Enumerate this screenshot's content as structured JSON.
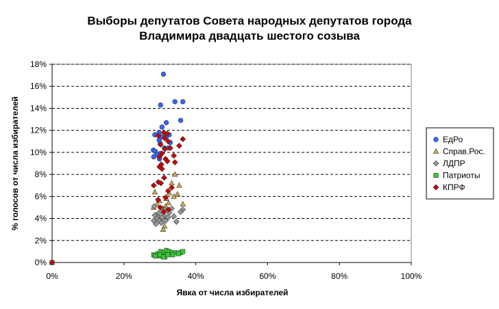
{
  "chart_data": {
    "type": "scatter",
    "title_lines": [
      "Выборы депутатов Совета народных депутатов города",
      "Владимира двадцать шестого созыва"
    ],
    "xlabel": "Явка от числа избирателей",
    "ylabel": "% голосов от числа избирателей",
    "xlim": [
      0,
      100
    ],
    "ylim": [
      0,
      18
    ],
    "x_ticks": [
      "0%",
      "20%",
      "40%",
      "60%",
      "80%",
      "100%"
    ],
    "y_ticks": [
      "0%",
      "2%",
      "4%",
      "6%",
      "8%",
      "10%",
      "12%",
      "14%",
      "16%",
      "18%"
    ],
    "grid": "horizontal dashed",
    "legend_position": "right",
    "series": [
      {
        "name": "ЕдРо",
        "marker": "circle",
        "color": "#3366ff",
        "points": [
          [
            0,
            0
          ],
          [
            31.0,
            17.1
          ],
          [
            30.2,
            14.3
          ],
          [
            34.2,
            14.6
          ],
          [
            36.4,
            14.6
          ],
          [
            35.8,
            12.9
          ],
          [
            31.8,
            12.7
          ],
          [
            30.6,
            12.3
          ],
          [
            29.8,
            11.8
          ],
          [
            31.4,
            11.7
          ],
          [
            28.6,
            11.6
          ],
          [
            30.3,
            11.4
          ],
          [
            32.6,
            11.6
          ],
          [
            29.8,
            11.1
          ],
          [
            31.7,
            11.3
          ],
          [
            30.1,
            10.8
          ],
          [
            32.9,
            10.9
          ],
          [
            31.3,
            10.4
          ],
          [
            28.2,
            10.2
          ],
          [
            28.7,
            10.1
          ],
          [
            32.4,
            10.4
          ],
          [
            30.1,
            9.9
          ],
          [
            29.2,
            9.8
          ],
          [
            28.3,
            9.6
          ],
          [
            29.9,
            9.4
          ]
        ]
      },
      {
        "name": "Справ.Рос.",
        "marker": "triangle",
        "color": "#ccaa55",
        "points": [
          [
            0,
            0
          ],
          [
            34.2,
            8.0
          ],
          [
            33.3,
            7.2
          ],
          [
            35.4,
            7.0
          ],
          [
            28.6,
            6.4
          ],
          [
            32.6,
            6.3
          ],
          [
            34.9,
            6.2
          ],
          [
            33.9,
            6.0
          ],
          [
            31.8,
            5.8
          ],
          [
            29.9,
            5.6
          ],
          [
            32.4,
            5.4
          ],
          [
            29.2,
            5.3
          ],
          [
            36.4,
            5.3
          ],
          [
            31.6,
            5.1
          ],
          [
            28.3,
            5.0
          ],
          [
            30.8,
            4.9
          ],
          [
            29.6,
            4.3
          ],
          [
            31.3,
            3.3
          ],
          [
            30.9,
            3.0
          ]
        ]
      },
      {
        "name": "ЛДПР",
        "marker": "diamond",
        "color": "#999999",
        "points": [
          [
            0,
            0
          ],
          [
            28.4,
            5.1
          ],
          [
            31.4,
            4.8
          ],
          [
            33.3,
            4.9
          ],
          [
            36.4,
            4.8
          ],
          [
            29.7,
            4.5
          ],
          [
            32.6,
            4.5
          ],
          [
            35.8,
            4.6
          ],
          [
            28.6,
            4.3
          ],
          [
            31.1,
            4.3
          ],
          [
            33.9,
            4.2
          ],
          [
            29.2,
            4.0
          ],
          [
            30.6,
            4.1
          ],
          [
            32.3,
            4.1
          ],
          [
            28.3,
            3.8
          ],
          [
            29.9,
            3.8
          ],
          [
            31.6,
            3.8
          ],
          [
            30.4,
            3.6
          ],
          [
            34.6,
            3.7
          ],
          [
            28.9,
            3.5
          ]
        ]
      },
      {
        "name": "Патриоты",
        "marker": "square",
        "color": "#33cc33",
        "points": [
          [
            0,
            0
          ],
          [
            28.3,
            0.7
          ],
          [
            29.5,
            0.8
          ],
          [
            30.2,
            1.0
          ],
          [
            31.0,
            0.9
          ],
          [
            31.8,
            1.1
          ],
          [
            32.5,
            1.0
          ],
          [
            33.3,
            0.9
          ],
          [
            34.2,
            0.9
          ],
          [
            35.8,
            0.9
          ],
          [
            36.4,
            1.0
          ],
          [
            30.6,
            0.6
          ],
          [
            31.4,
            0.5
          ],
          [
            32.2,
            0.7
          ],
          [
            29.2,
            0.6
          ],
          [
            33.6,
            0.7
          ],
          [
            28.7,
            0.6
          ],
          [
            30.0,
            0.7
          ],
          [
            31.0,
            0.5
          ],
          [
            35.2,
            0.8
          ]
        ]
      },
      {
        "name": "КПРФ",
        "marker": "diamond",
        "color": "#cc0000",
        "points": [
          [
            0,
            0
          ],
          [
            31.1,
            11.8
          ],
          [
            32.1,
            11.7
          ],
          [
            29.6,
            11.5
          ],
          [
            31.3,
            11.3
          ],
          [
            36.4,
            11.2
          ],
          [
            32.3,
            11.0
          ],
          [
            30.2,
            10.7
          ],
          [
            35.4,
            10.6
          ],
          [
            31.4,
            10.3
          ],
          [
            32.9,
            10.4
          ],
          [
            30.6,
            9.9
          ],
          [
            33.9,
            9.7
          ],
          [
            29.9,
            9.6
          ],
          [
            31.6,
            9.4
          ],
          [
            32.1,
            9.2
          ],
          [
            34.2,
            9.1
          ],
          [
            30.4,
            8.9
          ],
          [
            29.9,
            8.7
          ],
          [
            30.6,
            8.5
          ],
          [
            31.2,
            7.7
          ],
          [
            28.3,
            7.0
          ],
          [
            29.6,
            7.3
          ],
          [
            30.3,
            7.2
          ],
          [
            33.3,
            6.8
          ],
          [
            32.3,
            6.5
          ],
          [
            29.5,
            5.7
          ],
          [
            31.6,
            5.9
          ],
          [
            30.1,
            5.0
          ],
          [
            31.1,
            4.6
          ],
          [
            32.4,
            4.8
          ]
        ]
      }
    ]
  }
}
